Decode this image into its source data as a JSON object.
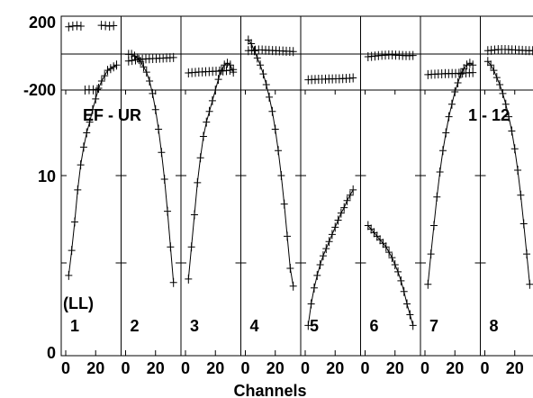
{
  "chart_data": {
    "type": "scatter",
    "xlabel": "Channels",
    "ylabel": "",
    "phase_yticks": [
      "200",
      "-200"
    ],
    "amp_yticks": [
      "10",
      "0"
    ],
    "xticks": [
      "0",
      "20"
    ],
    "phase_ylim": [
      -200,
      200
    ],
    "amp_ylim": [
      0,
      20
    ],
    "xlim": [
      -3,
      37
    ],
    "annotations": {
      "baseline_left": "EF - UR",
      "baseline_right": "1 - 12",
      "polarization": "(LL)"
    },
    "panels": [
      {
        "label": "1",
        "phase": [
          170,
          174,
          176,
          174,
          -200,
          -198,
          -199,
          -197,
          178,
          176,
          174,
          176
        ],
        "amp": [
          [
            2,
            4.4
          ],
          [
            4,
            5.8
          ],
          [
            6,
            7.4
          ],
          [
            8,
            9.2
          ],
          [
            10,
            10.6
          ],
          [
            12,
            11.6
          ],
          [
            14,
            12.4
          ],
          [
            16,
            13.0
          ],
          [
            18,
            13.7
          ],
          [
            20,
            14.3
          ],
          [
            22,
            14.9
          ],
          [
            24,
            15.3
          ],
          [
            26,
            15.6
          ],
          [
            28,
            15.9
          ],
          [
            30,
            16.0
          ],
          [
            32,
            16.1
          ],
          [
            34,
            16.2
          ]
        ]
      },
      {
        "label": "2",
        "phase": [
          -30,
          -27,
          -24,
          -22,
          -20,
          -18,
          -17,
          -16,
          -15,
          -14,
          -13,
          -12,
          -11,
          -10
        ],
        "amp": [
          [
            2,
            16.8
          ],
          [
            4,
            16.8
          ],
          [
            6,
            16.7
          ],
          [
            8,
            16.6
          ],
          [
            10,
            16.4
          ],
          [
            12,
            16.1
          ],
          [
            14,
            15.8
          ],
          [
            16,
            15.3
          ],
          [
            18,
            14.6
          ],
          [
            20,
            13.7
          ],
          [
            22,
            12.6
          ],
          [
            24,
            11.3
          ],
          [
            26,
            9.8
          ],
          [
            28,
            8.0
          ],
          [
            30,
            6.0
          ],
          [
            32,
            4.0
          ]
        ]
      },
      {
        "label": "3",
        "phase": [
          -100,
          -98,
          -97,
          -95,
          -94,
          -93,
          -92,
          -91,
          -90,
          -89,
          -88,
          -86,
          -84,
          -80
        ],
        "amp": [
          [
            2,
            4.2
          ],
          [
            4,
            6.0
          ],
          [
            6,
            7.8
          ],
          [
            8,
            9.6
          ],
          [
            10,
            11.0
          ],
          [
            12,
            12.2
          ],
          [
            14,
            13.0
          ],
          [
            16,
            13.6
          ],
          [
            18,
            14.2
          ],
          [
            20,
            14.8
          ],
          [
            22,
            15.4
          ],
          [
            24,
            15.9
          ],
          [
            26,
            16.2
          ],
          [
            28,
            16.3
          ],
          [
            30,
            16.2
          ],
          [
            32,
            15.8
          ]
        ]
      },
      {
        "label": "4",
        "phase": [
          30,
          32,
          33,
          34,
          34,
          33,
          32,
          31,
          30,
          29,
          28,
          27,
          26,
          25
        ],
        "amp": [
          [
            2,
            17.6
          ],
          [
            4,
            17.4
          ],
          [
            6,
            17.0
          ],
          [
            8,
            16.6
          ],
          [
            10,
            16.2
          ],
          [
            12,
            15.7
          ],
          [
            14,
            15.1
          ],
          [
            16,
            14.4
          ],
          [
            18,
            13.6
          ],
          [
            20,
            12.6
          ],
          [
            22,
            11.4
          ],
          [
            24,
            10.0
          ],
          [
            26,
            8.4
          ],
          [
            28,
            6.6
          ],
          [
            30,
            4.8
          ],
          [
            32,
            3.8
          ]
        ]
      },
      {
        "label": "5",
        "phase": [
          -140,
          -139,
          -138,
          -137,
          -137,
          -136,
          -135,
          -135,
          -134,
          -134,
          -133,
          -132,
          -131,
          -129
        ],
        "amp": [
          [
            2,
            1.6
          ],
          [
            4,
            2.8
          ],
          [
            6,
            3.7
          ],
          [
            8,
            4.4
          ],
          [
            10,
            5.0
          ],
          [
            12,
            5.5
          ],
          [
            14,
            5.9
          ],
          [
            16,
            6.3
          ],
          [
            18,
            6.7
          ],
          [
            20,
            7.1
          ],
          [
            22,
            7.5
          ],
          [
            24,
            7.9
          ],
          [
            26,
            8.2
          ],
          [
            28,
            8.6
          ],
          [
            30,
            8.9
          ],
          [
            32,
            9.2
          ]
        ]
      },
      {
        "label": "6",
        "phase": [
          -5,
          -3,
          -1,
          1,
          3,
          4,
          5,
          5,
          4,
          3,
          2,
          1,
          1,
          2
        ],
        "amp": [
          [
            2,
            7.2
          ],
          [
            4,
            7.0
          ],
          [
            6,
            6.8
          ],
          [
            8,
            6.6
          ],
          [
            10,
            6.4
          ],
          [
            12,
            6.2
          ],
          [
            14,
            6.0
          ],
          [
            16,
            5.7
          ],
          [
            18,
            5.4
          ],
          [
            20,
            5.0
          ],
          [
            22,
            4.6
          ],
          [
            24,
            4.1
          ],
          [
            26,
            3.5
          ],
          [
            28,
            2.8
          ],
          [
            30,
            2.2
          ],
          [
            32,
            1.6
          ]
        ]
      },
      {
        "label": "7",
        "phase": [
          -110,
          -108,
          -107,
          -106,
          -105,
          -104,
          -104,
          -103,
          -103,
          -102,
          -101,
          -100,
          -99,
          -98
        ],
        "amp": [
          [
            2,
            3.9
          ],
          [
            4,
            5.6
          ],
          [
            6,
            7.2
          ],
          [
            8,
            8.8
          ],
          [
            10,
            10.2
          ],
          [
            12,
            11.4
          ],
          [
            14,
            12.4
          ],
          [
            16,
            13.3
          ],
          [
            18,
            14.0
          ],
          [
            20,
            14.7
          ],
          [
            22,
            15.2
          ],
          [
            24,
            15.7
          ],
          [
            26,
            16.0
          ],
          [
            28,
            16.2
          ],
          [
            30,
            16.3
          ],
          [
            32,
            16.2
          ]
        ]
      },
      {
        "label": "8",
        "phase": [
          30,
          32,
          34,
          36,
          37,
          37,
          36,
          35,
          34,
          33,
          32,
          31,
          30,
          30
        ],
        "amp": [
          [
            2,
            16.4
          ],
          [
            4,
            16.2
          ],
          [
            6,
            15.9
          ],
          [
            8,
            15.5
          ],
          [
            10,
            15.1
          ],
          [
            12,
            14.6
          ],
          [
            14,
            14.0
          ],
          [
            16,
            13.3
          ],
          [
            18,
            12.5
          ],
          [
            20,
            11.5
          ],
          [
            22,
            10.3
          ],
          [
            24,
            8.9
          ],
          [
            26,
            7.3
          ],
          [
            28,
            5.6
          ],
          [
            30,
            3.9
          ]
        ]
      }
    ]
  }
}
